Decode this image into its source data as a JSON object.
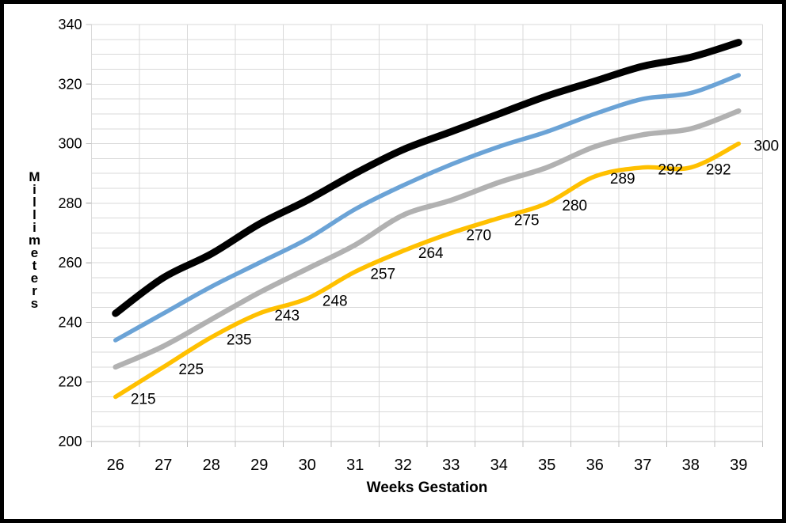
{
  "chart_data": {
    "type": "line",
    "title": "",
    "xlabel": "Weeks Gestation",
    "ylabel": "Millimeters",
    "x_categories": [
      26,
      27,
      28,
      29,
      30,
      31,
      32,
      33,
      34,
      35,
      36,
      37,
      38,
      39
    ],
    "ylim": [
      200,
      340
    ],
    "y_major_step": 20,
    "y_minor_step": 5,
    "y_tick_labels": [
      200,
      220,
      240,
      260,
      280,
      300,
      320,
      340
    ],
    "grid": true,
    "legend": "none",
    "smoothed_lines": true,
    "series": [
      {
        "name": "black-upper",
        "color": "#000000",
        "stroke_width": 9,
        "data_labels": false,
        "values": [
          243,
          255,
          263,
          273,
          281,
          290,
          298,
          304,
          310,
          316,
          321,
          326,
          329,
          334
        ]
      },
      {
        "name": "blue",
        "color": "#6BA3D6",
        "stroke_width": 5.5,
        "data_labels": false,
        "values": [
          234,
          243,
          252,
          260,
          268,
          278,
          286,
          293,
          299,
          304,
          310,
          315,
          317,
          323
        ]
      },
      {
        "name": "gray",
        "color": "#B1B1B1",
        "stroke_width": 6.5,
        "data_labels": false,
        "values": [
          225,
          232,
          241,
          250,
          258,
          266,
          276,
          281,
          287,
          292,
          299,
          303,
          305,
          311
        ]
      },
      {
        "name": "gold-labeled",
        "color": "#FFC000",
        "stroke_width": 5.5,
        "data_labels": true,
        "values": [
          215,
          225,
          235,
          243,
          248,
          257,
          264,
          270,
          275,
          280,
          289,
          292,
          292,
          300
        ]
      }
    ],
    "colors": {
      "gridline": "#D9D9D9",
      "axis_line": "#BFBFBF",
      "tick": "#BFBFBF",
      "label_text": "#000000",
      "frame_border": "#000000",
      "background": "#FFFFFF"
    }
  }
}
